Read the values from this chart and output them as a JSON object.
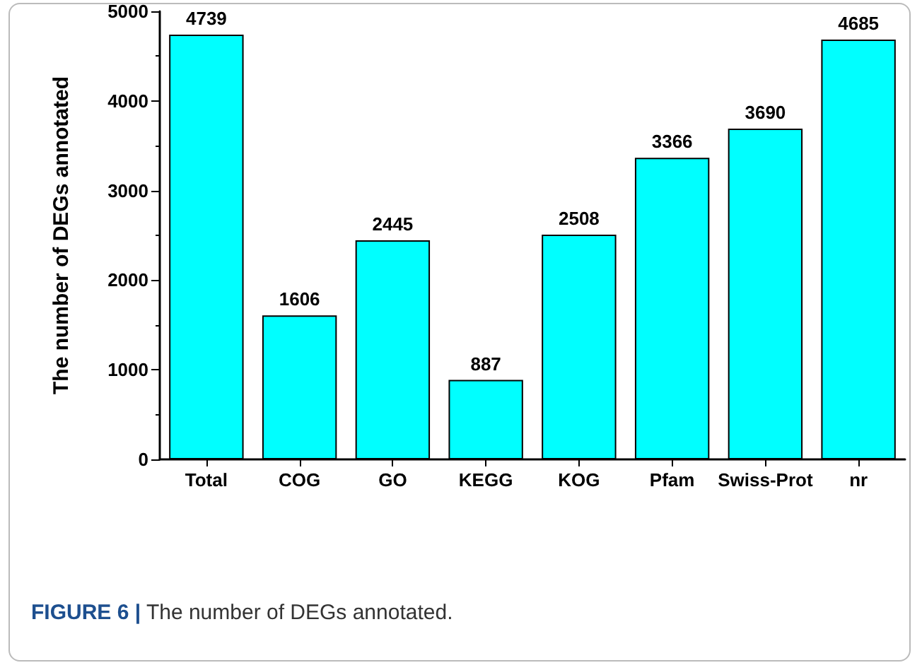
{
  "chart_data": {
    "type": "bar",
    "ylabel": "The number of DEGs annotated",
    "categories": [
      "Total",
      "COG",
      "GO",
      "KEGG",
      "KOG",
      "Pfam",
      "Swiss-Prot",
      "nr"
    ],
    "values": [
      4739,
      1606,
      2445,
      887,
      2508,
      3366,
      3690,
      4685
    ],
    "color": "#00ffff",
    "data_labels": true,
    "grid": false,
    "ylim": [
      0,
      5000
    ],
    "yticks": [
      0,
      1000,
      2000,
      3000,
      4000,
      5000
    ],
    "annotations": [
      "FIGURE 6 | The number of DEGs annotated."
    ]
  }
}
